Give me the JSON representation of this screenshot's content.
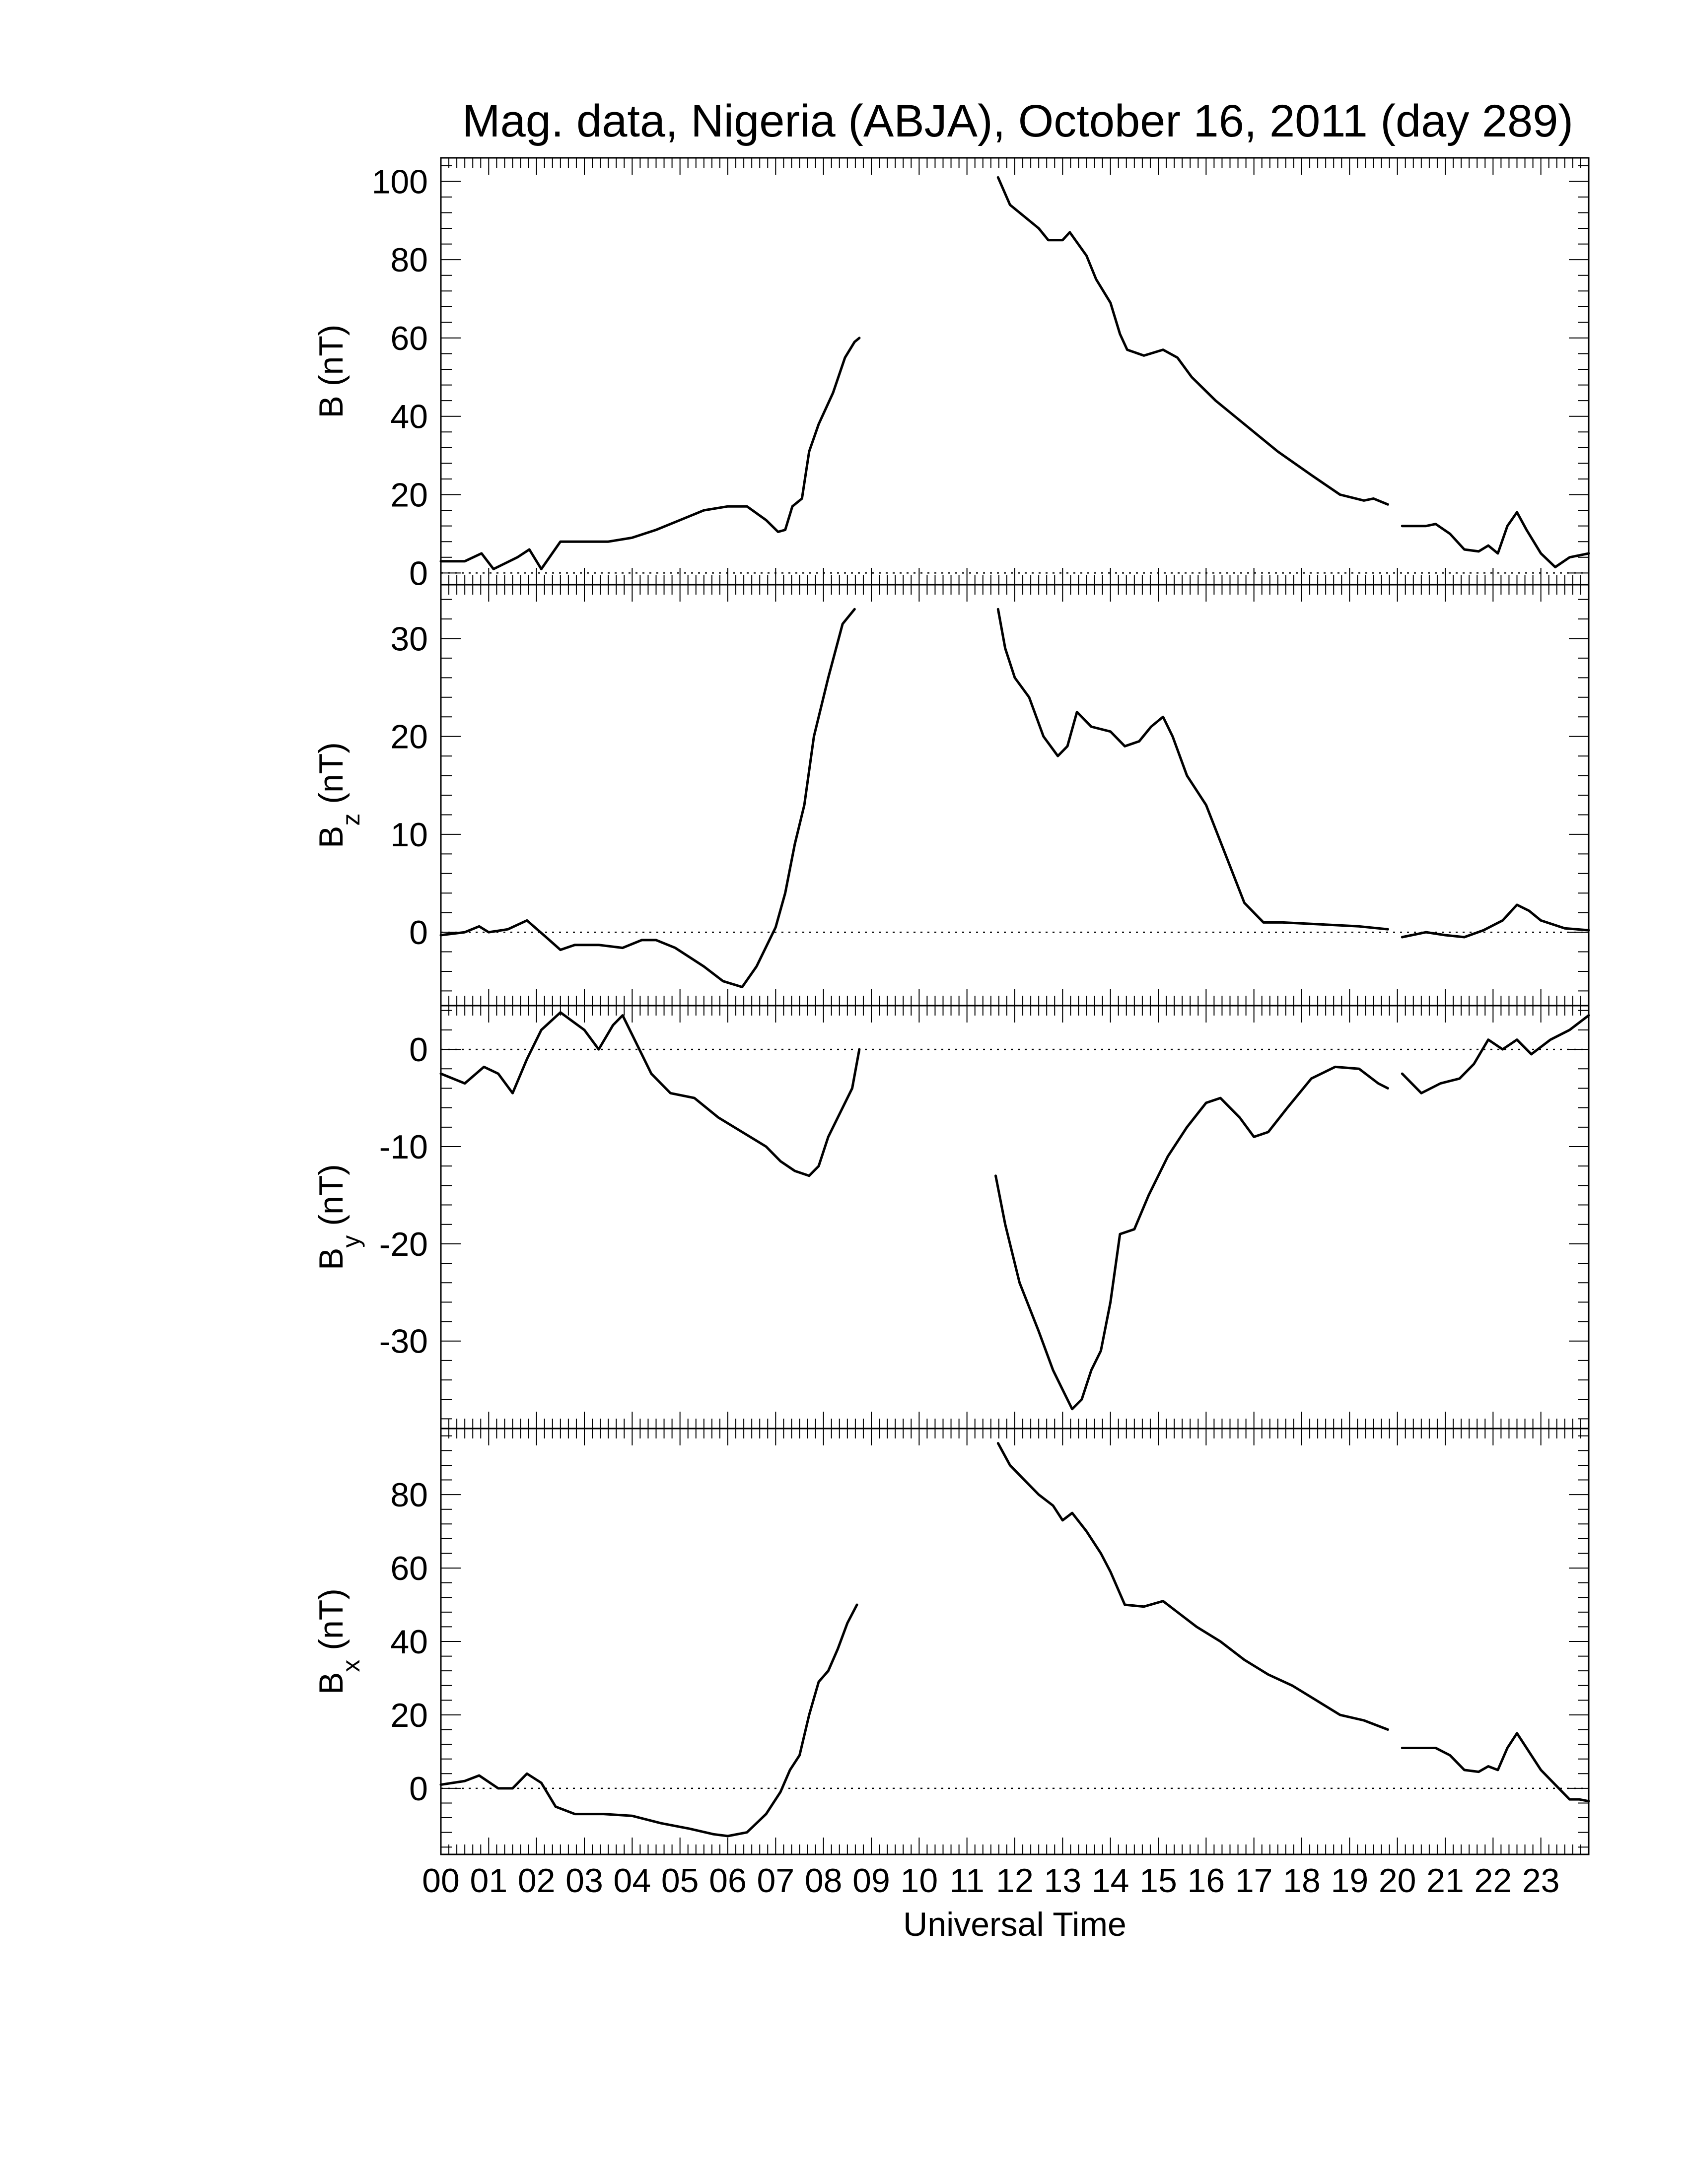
{
  "chart_data": {
    "type": "line",
    "title": "Mag. data, Nigeria (ABJA), October 16, 2011 (day 289)",
    "xlabel": "Universal Time",
    "xlim": [
      0,
      24
    ],
    "x_tick_labels": [
      "00",
      "01",
      "02",
      "03",
      "04",
      "05",
      "06",
      "07",
      "08",
      "09",
      "10",
      "11",
      "12",
      "13",
      "14",
      "15",
      "16",
      "17",
      "18",
      "19",
      "20",
      "21",
      "22",
      "23"
    ],
    "zero_line": "dotted",
    "panels": [
      {
        "ylabel_main": "B",
        "ylabel_sub": "",
        "ylabel_unit": "(nT)",
        "ylim": [
          -3,
          106
        ],
        "yticks": [
          0,
          20,
          40,
          60,
          80,
          100
        ],
        "show_zero_line": true,
        "segments": [
          [
            [
              0,
              3
            ],
            [
              0.5,
              3
            ],
            [
              0.85,
              5
            ],
            [
              1.1,
              1
            ],
            [
              1.6,
              4
            ],
            [
              1.85,
              6
            ],
            [
              2.1,
              1
            ],
            [
              2.5,
              8
            ],
            [
              3.0,
              8
            ],
            [
              3.5,
              8
            ],
            [
              4.0,
              9
            ],
            [
              4.5,
              11
            ],
            [
              5.0,
              13.5
            ],
            [
              5.5,
              16
            ],
            [
              6.0,
              17
            ],
            [
              6.4,
              17
            ],
            [
              6.8,
              13.5
            ],
            [
              7.05,
              10.5
            ],
            [
              7.2,
              11
            ],
            [
              7.35,
              17
            ],
            [
              7.55,
              19
            ],
            [
              7.7,
              31
            ],
            [
              7.9,
              38
            ],
            [
              8.2,
              46
            ],
            [
              8.45,
              55
            ],
            [
              8.65,
              59
            ],
            [
              8.75,
              60
            ]
          ],
          [
            [
              11.65,
              101
            ],
            [
              11.9,
              94
            ],
            [
              12.2,
              91
            ],
            [
              12.5,
              88
            ],
            [
              12.7,
              85
            ],
            [
              13.0,
              85
            ],
            [
              13.15,
              87
            ],
            [
              13.5,
              81
            ],
            [
              13.7,
              75
            ],
            [
              14.0,
              69
            ],
            [
              14.2,
              61
            ],
            [
              14.35,
              57
            ],
            [
              14.7,
              55.5
            ],
            [
              15.1,
              57
            ],
            [
              15.4,
              55
            ],
            [
              15.7,
              50
            ],
            [
              16.2,
              44
            ],
            [
              16.8,
              38
            ],
            [
              17.5,
              31
            ],
            [
              18.2,
              25
            ],
            [
              18.8,
              20
            ],
            [
              19.3,
              18.5
            ],
            [
              19.5,
              19
            ],
            [
              19.8,
              17.5
            ]
          ],
          [
            [
              20.1,
              12
            ],
            [
              20.6,
              12
            ],
            [
              20.8,
              12.5
            ],
            [
              21.1,
              10
            ],
            [
              21.4,
              6
            ],
            [
              21.7,
              5.5
            ],
            [
              21.9,
              7
            ],
            [
              22.1,
              5
            ],
            [
              22.3,
              12
            ],
            [
              22.5,
              15.5
            ],
            [
              22.7,
              11
            ],
            [
              23.0,
              5
            ],
            [
              23.3,
              1.5
            ],
            [
              23.6,
              4
            ],
            [
              24.0,
              5
            ]
          ]
        ]
      },
      {
        "ylabel_main": "B",
        "ylabel_sub": "z",
        "ylabel_unit": "(nT)",
        "ylim": [
          -7.5,
          35.5
        ],
        "yticks": [
          0,
          10,
          20,
          30
        ],
        "show_zero_line": true,
        "segments": [
          [
            [
              0,
              -0.3
            ],
            [
              0.5,
              0
            ],
            [
              0.8,
              0.6
            ],
            [
              1.0,
              0
            ],
            [
              1.4,
              0.3
            ],
            [
              1.8,
              1.2
            ],
            [
              2.2,
              -0.5
            ],
            [
              2.5,
              -1.8
            ],
            [
              2.8,
              -1.3
            ],
            [
              3.3,
              -1.3
            ],
            [
              3.8,
              -1.6
            ],
            [
              4.2,
              -0.8
            ],
            [
              4.5,
              -0.8
            ],
            [
              4.9,
              -1.6
            ],
            [
              5.5,
              -3.5
            ],
            [
              5.9,
              -5
            ],
            [
              6.3,
              -5.6
            ],
            [
              6.6,
              -3.5
            ],
            [
              7.0,
              0.5
            ],
            [
              7.2,
              4
            ],
            [
              7.4,
              9
            ],
            [
              7.6,
              13
            ],
            [
              7.8,
              20
            ],
            [
              8.1,
              26
            ],
            [
              8.4,
              31.5
            ],
            [
              8.65,
              33
            ]
          ],
          [
            [
              11.65,
              33
            ],
            [
              11.8,
              29
            ],
            [
              12.0,
              26
            ],
            [
              12.3,
              24
            ],
            [
              12.6,
              20
            ],
            [
              12.9,
              18
            ],
            [
              13.1,
              19
            ],
            [
              13.3,
              22.5
            ],
            [
              13.6,
              21
            ],
            [
              14.0,
              20.5
            ],
            [
              14.3,
              19
            ],
            [
              14.6,
              19.5
            ],
            [
              14.85,
              21
            ],
            [
              15.1,
              22
            ],
            [
              15.3,
              20
            ],
            [
              15.6,
              16
            ],
            [
              16.0,
              13
            ],
            [
              16.4,
              8
            ],
            [
              16.8,
              3
            ],
            [
              17.2,
              1
            ],
            [
              17.6,
              1
            ],
            [
              18.4,
              0.8
            ],
            [
              19.2,
              0.6
            ],
            [
              19.8,
              0.3
            ]
          ],
          [
            [
              20.1,
              -0.5
            ],
            [
              20.6,
              0
            ],
            [
              21.0,
              -0.3
            ],
            [
              21.4,
              -0.5
            ],
            [
              21.8,
              0.2
            ],
            [
              22.2,
              1.2
            ],
            [
              22.5,
              2.8
            ],
            [
              22.75,
              2.2
            ],
            [
              23.0,
              1.2
            ],
            [
              23.5,
              0.4
            ],
            [
              24.0,
              0.2
            ]
          ]
        ]
      },
      {
        "ylabel_main": "B",
        "ylabel_sub": "y",
        "ylabel_unit": "(nT)",
        "ylim": [
          -39,
          4.5
        ],
        "yticks": [
          0,
          -10,
          -20,
          -30
        ],
        "show_zero_line": true,
        "segments": [
          [
            [
              0,
              -2.5
            ],
            [
              0.5,
              -3.5
            ],
            [
              0.9,
              -1.8
            ],
            [
              1.2,
              -2.5
            ],
            [
              1.5,
              -4.5
            ],
            [
              1.8,
              -1
            ],
            [
              2.1,
              2
            ],
            [
              2.5,
              3.8
            ],
            [
              3.0,
              2
            ],
            [
              3.3,
              0
            ],
            [
              3.6,
              2.5
            ],
            [
              3.8,
              3.5
            ],
            [
              4.1,
              0.5
            ],
            [
              4.4,
              -2.5
            ],
            [
              4.8,
              -4.5
            ],
            [
              5.3,
              -5
            ],
            [
              5.8,
              -7
            ],
            [
              6.3,
              -8.5
            ],
            [
              6.8,
              -10
            ],
            [
              7.1,
              -11.5
            ],
            [
              7.4,
              -12.5
            ],
            [
              7.7,
              -13
            ],
            [
              7.9,
              -12
            ],
            [
              8.1,
              -9
            ],
            [
              8.3,
              -7
            ],
            [
              8.6,
              -4
            ],
            [
              8.75,
              0
            ]
          ],
          [
            [
              11.6,
              -13
            ],
            [
              11.8,
              -18
            ],
            [
              12.1,
              -24
            ],
            [
              12.5,
              -29
            ],
            [
              12.8,
              -33
            ],
            [
              13.0,
              -35
            ],
            [
              13.2,
              -37
            ],
            [
              13.4,
              -36
            ],
            [
              13.6,
              -33
            ],
            [
              13.8,
              -31
            ],
            [
              14.0,
              -26
            ],
            [
              14.2,
              -19
            ],
            [
              14.5,
              -18.5
            ],
            [
              14.8,
              -15
            ],
            [
              15.2,
              -11
            ],
            [
              15.6,
              -8
            ],
            [
              16.0,
              -5.5
            ],
            [
              16.3,
              -5
            ],
            [
              16.7,
              -7
            ],
            [
              17.0,
              -9
            ],
            [
              17.3,
              -8.5
            ],
            [
              17.7,
              -6
            ],
            [
              18.2,
              -3
            ],
            [
              18.7,
              -1.8
            ],
            [
              19.2,
              -2
            ],
            [
              19.6,
              -3.5
            ],
            [
              19.8,
              -4
            ]
          ],
          [
            [
              20.1,
              -2.5
            ],
            [
              20.5,
              -4.5
            ],
            [
              20.9,
              -3.5
            ],
            [
              21.3,
              -3
            ],
            [
              21.6,
              -1.5
            ],
            [
              21.9,
              1
            ],
            [
              22.2,
              0
            ],
            [
              22.5,
              1
            ],
            [
              22.8,
              -0.5
            ],
            [
              23.2,
              1
            ],
            [
              23.6,
              2
            ],
            [
              24.0,
              3.5
            ]
          ]
        ]
      },
      {
        "ylabel_main": "B",
        "ylabel_sub": "x",
        "ylabel_unit": "(nT)",
        "ylim": [
          -18,
          98
        ],
        "yticks": [
          0,
          20,
          40,
          60,
          80
        ],
        "show_zero_line": true,
        "segments": [
          [
            [
              0,
              1
            ],
            [
              0.5,
              2
            ],
            [
              0.8,
              3.5
            ],
            [
              1.2,
              0
            ],
            [
              1.5,
              0
            ],
            [
              1.8,
              4
            ],
            [
              2.1,
              1.5
            ],
            [
              2.4,
              -5
            ],
            [
              2.8,
              -7
            ],
            [
              3.4,
              -7
            ],
            [
              4.0,
              -7.5
            ],
            [
              4.6,
              -9.5
            ],
            [
              5.2,
              -11
            ],
            [
              5.7,
              -12.5
            ],
            [
              6.0,
              -13
            ],
            [
              6.4,
              -12
            ],
            [
              6.8,
              -7
            ],
            [
              7.1,
              -1
            ],
            [
              7.3,
              5
            ],
            [
              7.5,
              9
            ],
            [
              7.7,
              20
            ],
            [
              7.9,
              29
            ],
            [
              8.1,
              32
            ],
            [
              8.3,
              38
            ],
            [
              8.5,
              45
            ],
            [
              8.7,
              50
            ]
          ],
          [
            [
              11.65,
              94
            ],
            [
              11.9,
              88
            ],
            [
              12.2,
              84
            ],
            [
              12.5,
              80
            ],
            [
              12.8,
              77
            ],
            [
              13.0,
              73
            ],
            [
              13.2,
              75
            ],
            [
              13.5,
              70
            ],
            [
              13.8,
              64
            ],
            [
              14.0,
              59
            ],
            [
              14.3,
              50
            ],
            [
              14.7,
              49.5
            ],
            [
              15.1,
              51
            ],
            [
              15.4,
              48
            ],
            [
              15.8,
              44
            ],
            [
              16.3,
              40
            ],
            [
              16.8,
              35
            ],
            [
              17.3,
              31
            ],
            [
              17.8,
              28
            ],
            [
              18.3,
              24
            ],
            [
              18.8,
              20
            ],
            [
              19.3,
              18.5
            ],
            [
              19.8,
              16
            ]
          ],
          [
            [
              20.1,
              11
            ],
            [
              20.5,
              11
            ],
            [
              20.8,
              11
            ],
            [
              21.1,
              9
            ],
            [
              21.4,
              5
            ],
            [
              21.7,
              4.5
            ],
            [
              21.9,
              6
            ],
            [
              22.1,
              5
            ],
            [
              22.3,
              11
            ],
            [
              22.5,
              15
            ],
            [
              22.7,
              11
            ],
            [
              23.0,
              5
            ],
            [
              23.3,
              1
            ],
            [
              23.6,
              -3
            ],
            [
              23.8,
              -3
            ],
            [
              24.0,
              -3.5
            ]
          ]
        ]
      }
    ]
  }
}
